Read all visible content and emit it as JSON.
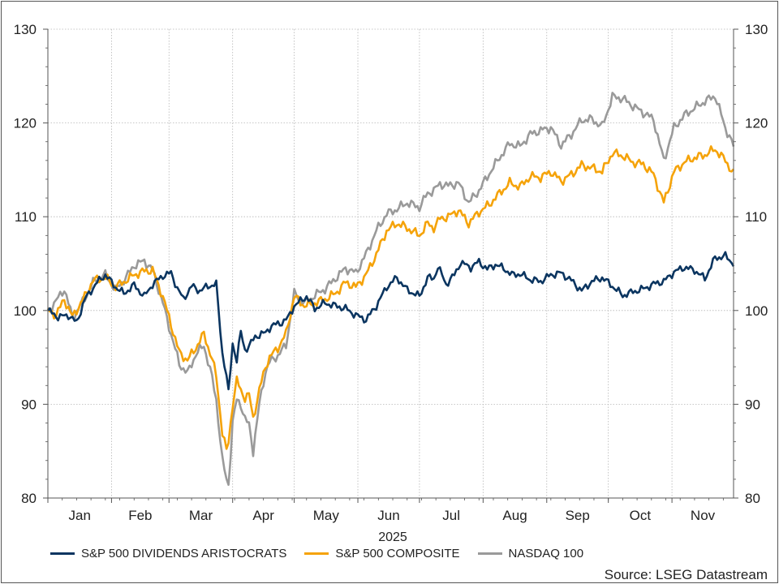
{
  "chart_data": {
    "type": "line",
    "title": "",
    "xlabel": "2025",
    "ylabel": "",
    "ylim": [
      80,
      130
    ],
    "yticks": [
      80,
      90,
      100,
      110,
      120,
      130
    ],
    "ytick_labels": [
      "80",
      "90",
      "100",
      "110",
      "120",
      "130"
    ],
    "xlim": [
      0,
      334
    ],
    "month_ticks": [
      0,
      31,
      59,
      90,
      120,
      151,
      181,
      212,
      243,
      273,
      304
    ],
    "months": [
      "Jan",
      "Feb",
      "Mar",
      "Apr",
      "May",
      "Jun",
      "Jul",
      "Aug",
      "Sep",
      "Oct",
      "Nov"
    ],
    "grid": true,
    "legend_position": "bottom",
    "source": "Source: LSEG Datastream",
    "series": [
      {
        "name": "S&P 500 DIVIDENDS ARISTOCRATS",
        "color": "#0b3560",
        "x": [
          0,
          5,
          10,
          14,
          18,
          24,
          28,
          33,
          37,
          42,
          47,
          51,
          56,
          60,
          63,
          66,
          70,
          74,
          78,
          82,
          85,
          87,
          88,
          90,
          92,
          94,
          96,
          98,
          101,
          104,
          106,
          109,
          113,
          117,
          120,
          126,
          130,
          135,
          140,
          145,
          150,
          155,
          160,
          165,
          170,
          175,
          181,
          185,
          188,
          190,
          194,
          198,
          201,
          206,
          210,
          214,
          218,
          222,
          226,
          230,
          235,
          240,
          245,
          250,
          255,
          260,
          265,
          270,
          275,
          280,
          285,
          290,
          296,
          300,
          305,
          310,
          315,
          320,
          325,
          330,
          333,
          334
        ],
        "y": [
          100,
          99.3,
          99.5,
          98.7,
          101.2,
          103,
          103.8,
          102.5,
          101.8,
          102.7,
          101.5,
          102.8,
          103.7,
          104,
          102.4,
          101.2,
          102.6,
          102.1,
          102.6,
          102.8,
          95.5,
          93,
          91.2,
          96.5,
          94.7,
          97.7,
          95.8,
          96.2,
          97.2,
          97.5,
          97.6,
          98.4,
          98.6,
          99.2,
          100.5,
          101.5,
          100.2,
          100.8,
          100.5,
          100.2,
          99.5,
          99,
          100.5,
          102.5,
          103.5,
          102.2,
          101.5,
          103.5,
          103.4,
          104.7,
          102.8,
          103.8,
          105.1,
          104.6,
          105.2,
          104.4,
          104.9,
          104.5,
          103.8,
          103.9,
          103.3,
          103.1,
          103.8,
          104,
          103.2,
          102.1,
          103.1,
          103.5,
          102.6,
          101.6,
          102,
          102.3,
          102.9,
          103.1,
          104.1,
          104.6,
          104.3,
          103.4,
          105.6,
          105.8,
          105.2,
          105.0
        ]
      },
      {
        "name": "S&P 500 COMPOSITE",
        "color": "#f5a30a",
        "x": [
          0,
          4,
          8,
          12,
          18,
          22,
          28,
          33,
          38,
          42,
          47,
          51,
          56,
          60,
          64,
          68,
          72,
          76,
          80,
          82,
          85,
          87,
          88,
          90,
          92,
          94,
          96,
          98,
          100,
          103,
          106,
          108,
          112,
          116,
          120,
          125,
          130,
          135,
          140,
          145,
          150,
          155,
          160,
          165,
          170,
          175,
          181,
          185,
          188,
          191,
          195,
          200,
          205,
          210,
          215,
          220,
          225,
          230,
          235,
          240,
          245,
          250,
          255,
          260,
          265,
          270,
          275,
          280,
          285,
          290,
          295,
          300,
          305,
          310,
          315,
          320,
          325,
          330,
          334
        ],
        "y": [
          100,
          99.5,
          101.2,
          99.3,
          101.5,
          103.2,
          103.5,
          102.5,
          103.2,
          103.8,
          104.2,
          104.3,
          101.5,
          98.5,
          95.5,
          94.7,
          96,
          97.5,
          94.8,
          93,
          87,
          85,
          86,
          90,
          92.5,
          91.5,
          90.7,
          91,
          88.5,
          91.5,
          94,
          95,
          96,
          97.5,
          101.5,
          100.5,
          100.8,
          101.2,
          101.8,
          103,
          102.5,
          103.8,
          106,
          108.5,
          109.3,
          108.8,
          108,
          109.3,
          108.8,
          109.8,
          110,
          110.7,
          109.3,
          110.5,
          111.3,
          112.5,
          113.6,
          113.2,
          114.3,
          114.2,
          114.8,
          113.8,
          114.5,
          115.5,
          115.2,
          114.8,
          116.8,
          116.5,
          115.8,
          115.6,
          114.5,
          111.5,
          114.8,
          115.8,
          116.3,
          116.6,
          117.2,
          116,
          114.6
        ]
      },
      {
        "name": "NASDAQ 100",
        "color": "#9a9a9a",
        "x": [
          0,
          4,
          8,
          12,
          18,
          22,
          28,
          33,
          38,
          42,
          47,
          51,
          56,
          60,
          64,
          68,
          72,
          76,
          80,
          82,
          85,
          87,
          88,
          90,
          92,
          94,
          96,
          98,
          100,
          103,
          106,
          108,
          112,
          116,
          120,
          125,
          130,
          135,
          140,
          145,
          150,
          155,
          160,
          165,
          170,
          175,
          181,
          185,
          188,
          191,
          195,
          200,
          205,
          210,
          215,
          220,
          225,
          230,
          235,
          240,
          245,
          250,
          255,
          260,
          265,
          270,
          275,
          280,
          285,
          290,
          295,
          300,
          305,
          310,
          315,
          320,
          325,
          330,
          334
        ],
        "y": [
          100,
          101,
          102.3,
          99.2,
          101.3,
          103,
          103.8,
          102.2,
          103.5,
          104.8,
          105.3,
          104.3,
          100.8,
          97.5,
          94.3,
          93.3,
          95.3,
          96.3,
          92.8,
          90.5,
          84,
          82,
          81.5,
          88,
          90.5,
          90,
          88.4,
          87.8,
          85,
          90,
          93.5,
          94.5,
          95.2,
          96.3,
          101.8,
          100.8,
          101.6,
          102.3,
          103.4,
          104.5,
          104,
          106,
          108.5,
          110.3,
          110.8,
          111.5,
          111,
          112.5,
          112.8,
          113.5,
          113.3,
          113.6,
          111.5,
          112.8,
          114.6,
          116.3,
          117.8,
          117.5,
          118.8,
          119.2,
          119.5,
          117.6,
          118.8,
          120.3,
          120.4,
          119.6,
          122.8,
          122.6,
          121.8,
          121.1,
          120.4,
          116,
          119.5,
          120.8,
          121.6,
          122.3,
          122.9,
          119.5,
          117.5
        ]
      }
    ]
  }
}
